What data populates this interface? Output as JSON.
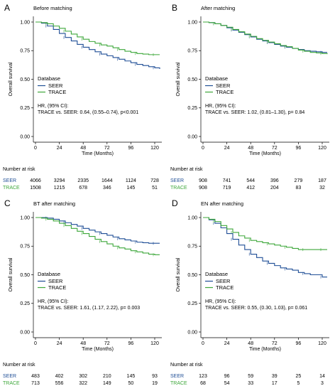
{
  "chart_data": [
    {
      "type": "line",
      "letter": "A",
      "title": "Before matching",
      "xlabel": "Time (Months)",
      "ylabel": "Overall survival",
      "xlim": [
        0,
        125
      ],
      "ylim": [
        0,
        1.0
      ],
      "xticks": [
        "0",
        "24",
        "48",
        "72",
        "96",
        "120"
      ],
      "yticks": [
        "0.00",
        "0.25",
        "0.50",
        "0.75",
        "1.00"
      ],
      "legend_title": "Database",
      "series": [
        {
          "name": "SEER",
          "color": "#1f4e96",
          "x": [
            0,
            6,
            12,
            18,
            24,
            30,
            36,
            42,
            48,
            54,
            60,
            66,
            72,
            78,
            84,
            90,
            96,
            102,
            108,
            114,
            120,
            125
          ],
          "y": [
            1.0,
            0.99,
            0.965,
            0.935,
            0.9,
            0.865,
            0.835,
            0.805,
            0.78,
            0.76,
            0.74,
            0.72,
            0.705,
            0.69,
            0.675,
            0.66,
            0.645,
            0.63,
            0.62,
            0.61,
            0.6,
            0.59
          ]
        },
        {
          "name": "TRACE",
          "color": "#3da73a",
          "x": [
            0,
            6,
            12,
            18,
            24,
            30,
            36,
            42,
            48,
            54,
            60,
            66,
            72,
            78,
            84,
            90,
            96,
            102,
            108,
            114,
            120,
            125
          ],
          "y": [
            1.0,
            0.995,
            0.985,
            0.965,
            0.945,
            0.92,
            0.895,
            0.87,
            0.85,
            0.83,
            0.815,
            0.8,
            0.79,
            0.775,
            0.76,
            0.745,
            0.735,
            0.725,
            0.72,
            0.715,
            0.715,
            0.715
          ]
        }
      ],
      "hr_label": "HR, (95% CI):",
      "hr_text": "TRACE vs. SEER: 0.64, (0.55–0.74), p<0.001",
      "risk_title": "Number at risk",
      "risk_table": [
        {
          "name": "SEER",
          "color": "#1f4e96",
          "values": [
            "4066",
            "3294",
            "2335",
            "1644",
            "1124",
            "728"
          ]
        },
        {
          "name": "TRACE",
          "color": "#3da73a",
          "values": [
            "1508",
            "1215",
            "678",
            "346",
            "145",
            "51"
          ]
        }
      ]
    },
    {
      "type": "line",
      "letter": "B",
      "title": "After matching",
      "xlabel": "Time (Months)",
      "ylabel": "Overall survival",
      "xlim": [
        0,
        125
      ],
      "ylim": [
        0,
        1.0
      ],
      "xticks": [
        "0",
        "24",
        "48",
        "72",
        "96",
        "120"
      ],
      "yticks": [
        "0.00",
        "0.25",
        "0.50",
        "0.75",
        "1.00"
      ],
      "legend_title": "Database",
      "series": [
        {
          "name": "SEER",
          "color": "#1f4e96",
          "x": [
            0,
            6,
            12,
            18,
            24,
            30,
            36,
            42,
            48,
            54,
            60,
            66,
            72,
            78,
            84,
            90,
            96,
            102,
            108,
            114,
            120,
            125
          ],
          "y": [
            1.0,
            0.995,
            0.985,
            0.97,
            0.95,
            0.93,
            0.91,
            0.89,
            0.87,
            0.85,
            0.835,
            0.82,
            0.805,
            0.79,
            0.78,
            0.77,
            0.76,
            0.75,
            0.745,
            0.74,
            0.735,
            0.735
          ]
        },
        {
          "name": "TRACE",
          "color": "#3da73a",
          "x": [
            0,
            6,
            12,
            18,
            24,
            30,
            36,
            42,
            48,
            54,
            60,
            66,
            72,
            78,
            84,
            90,
            96,
            102,
            108,
            114,
            120,
            125
          ],
          "y": [
            1.0,
            0.995,
            0.985,
            0.97,
            0.955,
            0.935,
            0.915,
            0.895,
            0.875,
            0.855,
            0.84,
            0.825,
            0.81,
            0.795,
            0.785,
            0.77,
            0.755,
            0.745,
            0.735,
            0.73,
            0.725,
            0.72
          ]
        }
      ],
      "hr_label": "HR, (95% CI):",
      "hr_text": "TRACE vs. SEER: 1.02, (0.81–1.30), p= 0.84",
      "risk_title": "Number at risk",
      "risk_table": [
        {
          "name": "SEER",
          "color": "#1f4e96",
          "values": [
            "908",
            "741",
            "544",
            "396",
            "279",
            "187"
          ]
        },
        {
          "name": "TRACE",
          "color": "#3da73a",
          "values": [
            "908",
            "719",
            "412",
            "204",
            "83",
            "32"
          ]
        }
      ]
    },
    {
      "type": "line",
      "letter": "C",
      "title": "BT after matching",
      "xlabel": "Time (Months)",
      "ylabel": "Overall survival",
      "xlim": [
        0,
        125
      ],
      "ylim": [
        0,
        1.0
      ],
      "xticks": [
        "0",
        "24",
        "48",
        "72",
        "96",
        "120"
      ],
      "yticks": [
        "0.00",
        "0.25",
        "0.50",
        "0.75",
        "1.00"
      ],
      "legend_title": "Database",
      "series": [
        {
          "name": "SEER",
          "color": "#1f4e96",
          "x": [
            0,
            6,
            12,
            18,
            24,
            30,
            36,
            42,
            48,
            54,
            60,
            66,
            72,
            78,
            84,
            90,
            96,
            102,
            108,
            114,
            120,
            125
          ],
          "y": [
            1.0,
            1.0,
            0.995,
            0.985,
            0.97,
            0.955,
            0.94,
            0.925,
            0.905,
            0.89,
            0.875,
            0.86,
            0.845,
            0.83,
            0.815,
            0.805,
            0.795,
            0.785,
            0.78,
            0.775,
            0.775,
            0.775
          ]
        },
        {
          "name": "TRACE",
          "color": "#3da73a",
          "x": [
            0,
            6,
            12,
            18,
            24,
            30,
            36,
            42,
            48,
            54,
            60,
            66,
            72,
            78,
            84,
            90,
            96,
            102,
            108,
            114,
            120,
            125
          ],
          "y": [
            1.0,
            0.995,
            0.985,
            0.97,
            0.95,
            0.93,
            0.905,
            0.88,
            0.86,
            0.835,
            0.81,
            0.79,
            0.77,
            0.75,
            0.735,
            0.725,
            0.71,
            0.7,
            0.69,
            0.68,
            0.675,
            0.675
          ]
        }
      ],
      "hr_label": "HR, (95% CI):",
      "hr_text": "TRACE vs. SEER: 1.61, (1.17, 2.22), p= 0.003",
      "risk_title": "Number at risk",
      "risk_table": [
        {
          "name": "SEER",
          "color": "#1f4e96",
          "values": [
            "483",
            "402",
            "302",
            "210",
            "145",
            "93"
          ]
        },
        {
          "name": "TRACE",
          "color": "#3da73a",
          "values": [
            "713",
            "556",
            "322",
            "149",
            "50",
            "19"
          ]
        }
      ]
    },
    {
      "type": "line",
      "letter": "D",
      "title": "EN after matching",
      "xlabel": "Time (Months)",
      "ylabel": "Overall survival",
      "xlim": [
        0,
        125
      ],
      "ylim": [
        0,
        1.0
      ],
      "xticks": [
        "0",
        "24",
        "48",
        "72",
        "96",
        "120"
      ],
      "yticks": [
        "0.00",
        "0.25",
        "0.50",
        "0.75",
        "1.00"
      ],
      "legend_title": "Database",
      "series": [
        {
          "name": "SEER",
          "color": "#1f4e96",
          "x": [
            0,
            6,
            12,
            18,
            24,
            30,
            36,
            42,
            48,
            54,
            60,
            66,
            72,
            78,
            84,
            90,
            96,
            102,
            108,
            114,
            120,
            125
          ],
          "y": [
            1.0,
            0.98,
            0.95,
            0.91,
            0.86,
            0.81,
            0.76,
            0.72,
            0.68,
            0.65,
            0.62,
            0.6,
            0.58,
            0.56,
            0.55,
            0.54,
            0.52,
            0.51,
            0.5,
            0.5,
            0.48,
            0.48
          ]
        },
        {
          "name": "TRACE",
          "color": "#3da73a",
          "x": [
            0,
            6,
            12,
            18,
            24,
            30,
            36,
            42,
            48,
            54,
            60,
            66,
            72,
            78,
            84,
            90,
            96,
            102,
            108,
            114,
            120,
            125
          ],
          "y": [
            1.0,
            0.985,
            0.965,
            0.93,
            0.9,
            0.87,
            0.84,
            0.82,
            0.8,
            0.79,
            0.78,
            0.77,
            0.76,
            0.75,
            0.74,
            0.73,
            0.72,
            0.72,
            0.72,
            0.72,
            0.72,
            0.72
          ]
        }
      ],
      "hr_label": "HR, (95% CI):",
      "hr_text": "TRACE vs. SEER: 0.55, (0.30, 1.03), p= 0.061",
      "risk_title": "Number at risk",
      "risk_table": [
        {
          "name": "SEER",
          "color": "#1f4e96",
          "values": [
            "123",
            "96",
            "59",
            "39",
            "25",
            "14"
          ]
        },
        {
          "name": "TRACE",
          "color": "#3da73a",
          "values": [
            "68",
            "54",
            "33",
            "17",
            "5",
            "3"
          ]
        }
      ]
    }
  ]
}
